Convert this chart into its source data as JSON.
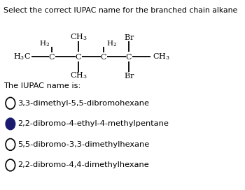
{
  "title": "Select the correct IUPAC name for the branched chain alkane",
  "iupac_label": "The IUPAC name is:",
  "options": [
    "3,3-dimethyl-5,5-dibromohexane",
    "2,2-dibromo-4-ethyl-4-methylpentane",
    "5,5-dibromo-3,3-dimethylhexane",
    "2,2-dibromo-4,4-dimethylhexane"
  ],
  "selected_option": 1,
  "bg_color": "#ffffff",
  "text_color": "#000000",
  "font_size_title": 7.8,
  "font_size_options": 8.2,
  "font_size_struct": 8.0,
  "font_size_iupac": 8.2
}
